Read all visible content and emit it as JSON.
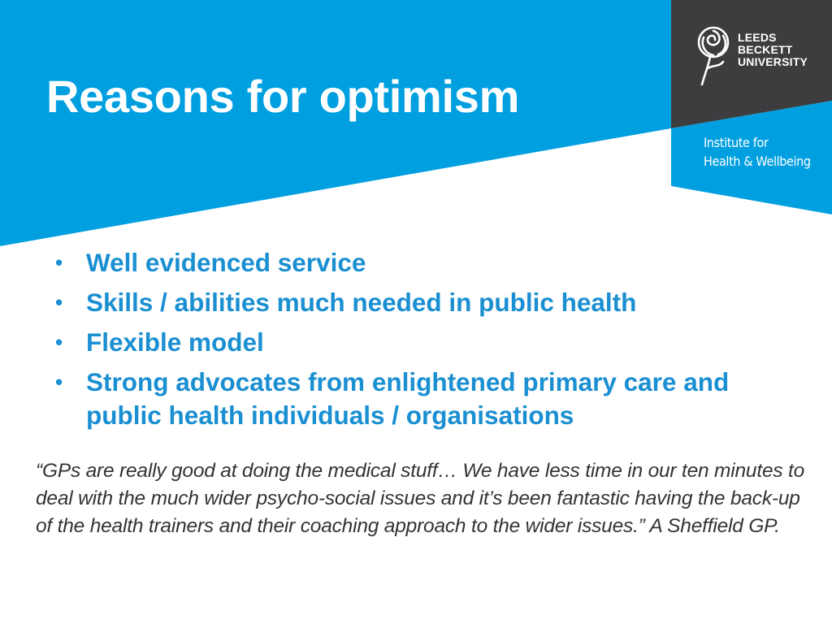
{
  "slide": {
    "title": "Reasons for optimism",
    "colors": {
      "header_blue": "#009fe0",
      "panel_grey": "#3d3d3f",
      "bullet_text": "#1a8fd1",
      "quote_text": "#333333"
    }
  },
  "logo": {
    "icon": "rose-icon",
    "line1": "LEEDS",
    "line2": "BECKETT",
    "line3": "UNIVERSITY"
  },
  "institute": {
    "line1": "Institute for",
    "line2": "Health & Wellbeing"
  },
  "bullets": [
    {
      "text": "Well evidenced service"
    },
    {
      "text": "Skills / abilities much needed in public health"
    },
    {
      "text": "Flexible model"
    },
    {
      "text": "Strong advocates from enlightened primary care and public health individuals / organisations"
    }
  ],
  "quote": {
    "text": "“GPs are really good at doing the medical stuff… We have less time in our ten minutes to deal with the much wider psycho-social issues and it’s been fantastic having the back-up of the health trainers and their coaching approach to the wider issues.” A Sheffield GP."
  }
}
